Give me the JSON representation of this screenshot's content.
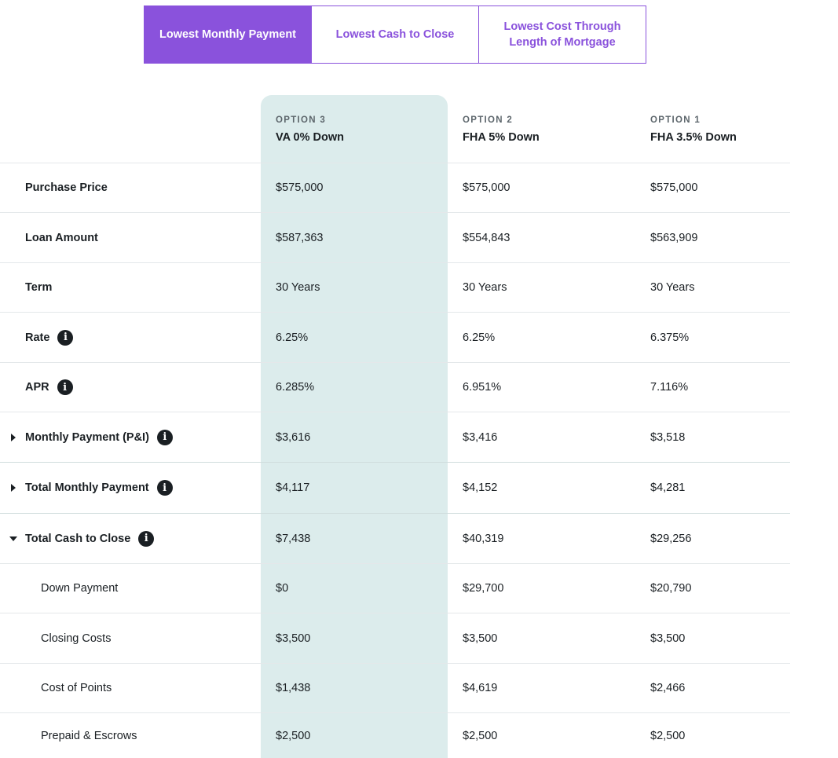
{
  "tabs": [
    {
      "label": "Lowest Monthly Payment",
      "active": true
    },
    {
      "label": "Lowest Cash to Close",
      "active": false
    },
    {
      "label": "Lowest Cost Through Length of Mortgage",
      "active": false
    }
  ],
  "columns": [
    {
      "option": "OPTION 3",
      "name": "VA 0% Down",
      "highlighted": true
    },
    {
      "option": "OPTION 2",
      "name": "FHA 5% Down"
    },
    {
      "option": "OPTION 1",
      "name": "FHA 3.5% Down"
    }
  ],
  "rows": {
    "purchase_price": {
      "label": "Purchase Price",
      "v3": "$575,000",
      "v2": "$575,000",
      "v1": "$575,000"
    },
    "loan_amount": {
      "label": "Loan Amount",
      "v3": "$587,363",
      "v2": "$554,843",
      "v1": "$563,909"
    },
    "term": {
      "label": "Term",
      "v3": "30 Years",
      "v2": "30 Years",
      "v1": "30 Years"
    },
    "rate": {
      "label": "Rate",
      "v3": "6.25%",
      "v2": "6.25%",
      "v1": "6.375%"
    },
    "apr": {
      "label": "APR",
      "v3": "6.285%",
      "v2": "6.951%",
      "v1": "7.116%"
    },
    "monthly_pi": {
      "label": "Monthly Payment (P&I)",
      "v3": "$3,616",
      "v2": "$3,416",
      "v1": "$3,518",
      "expanded": false
    },
    "total_monthly": {
      "label": "Total Monthly Payment",
      "v3": "$4,117",
      "v2": "$4,152",
      "v1": "$4,281",
      "expanded": false
    },
    "total_cash": {
      "label": "Total Cash to Close",
      "v3": "$7,438",
      "v2": "$40,319",
      "v1": "$29,256",
      "expanded": true
    },
    "down_payment": {
      "label": "Down Payment",
      "v3": "$0",
      "v2": "$29,700",
      "v1": "$20,790"
    },
    "closing_costs": {
      "label": "Closing Costs",
      "v3": "$3,500",
      "v2": "$3,500",
      "v1": "$3,500"
    },
    "cost_of_points": {
      "label": "Cost of Points",
      "v3": "$1,438",
      "v2": "$4,619",
      "v1": "$2,466"
    },
    "prepaid_escrows": {
      "label": "Prepaid & Escrows",
      "v3": "$2,500",
      "v2": "$2,500",
      "v1": "$2,500"
    }
  },
  "icons": {
    "info": "info-icon",
    "info_glyph": "i",
    "collapsed": "caret-right-icon",
    "expanded": "caret-down-icon"
  },
  "colors": {
    "accent": "#8a52dc",
    "highlight": "#dcecec",
    "text": "#1a1f23"
  }
}
